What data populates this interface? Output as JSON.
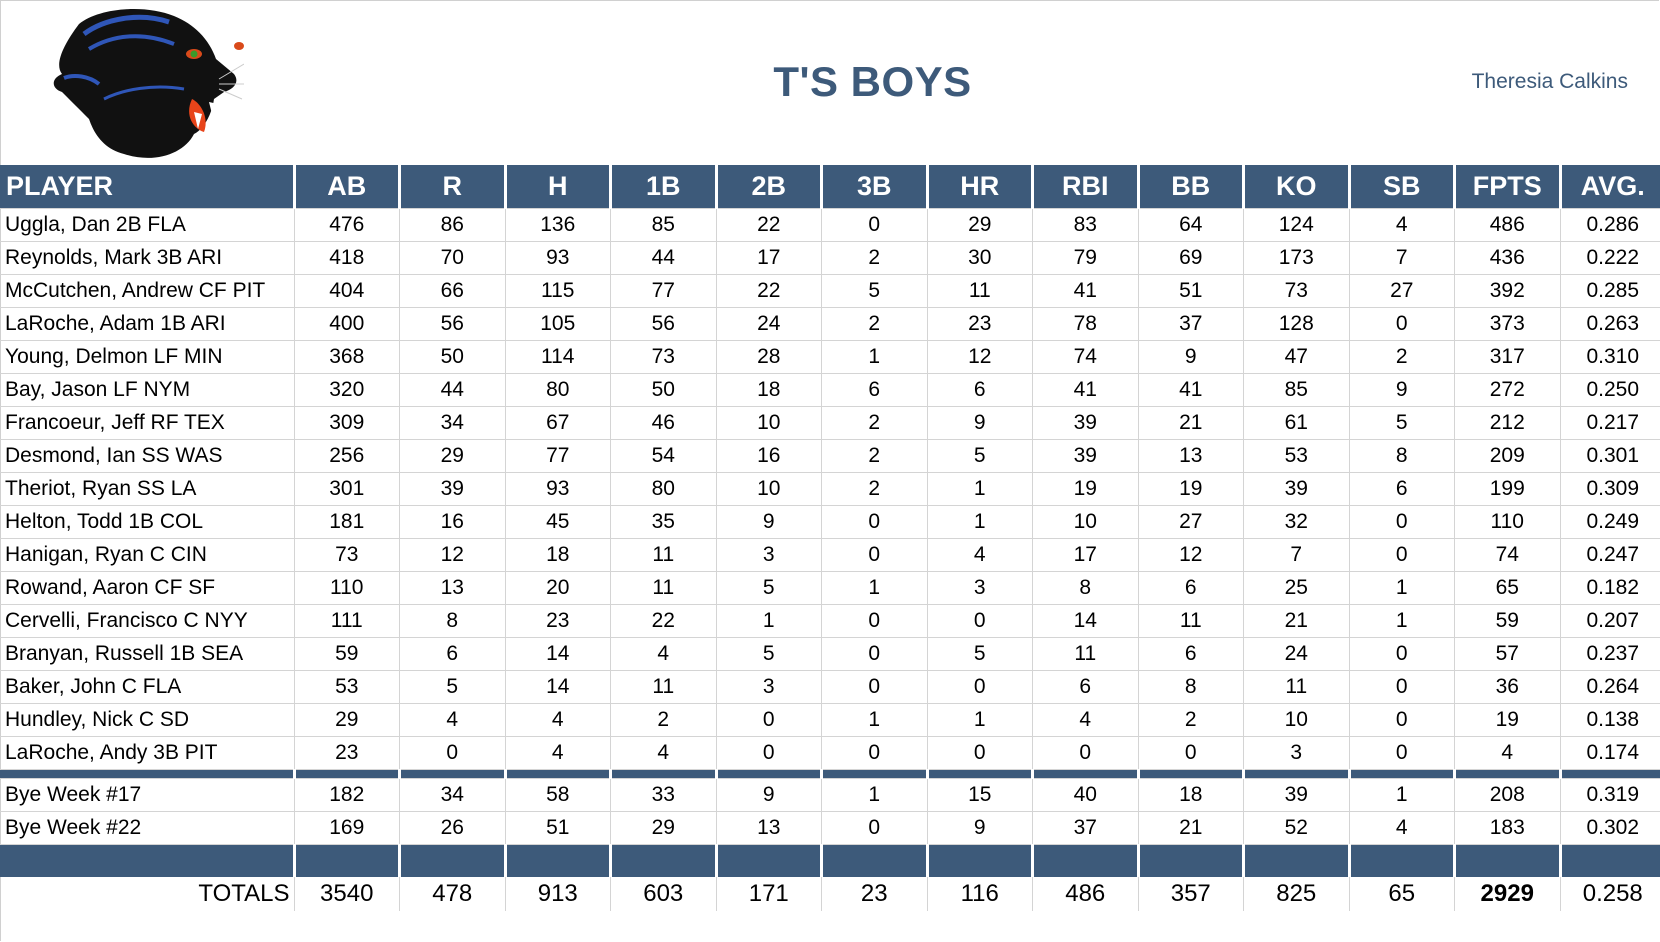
{
  "header": {
    "title": "T'S BOYS",
    "owner": "Theresia Calkins",
    "logo_icon": "panther-head-logo"
  },
  "colors": {
    "header_bg": "#3d5a7a",
    "title_text": "#3d5a7a",
    "header_text": "#ffffff",
    "grid": "#d4d4d4"
  },
  "table": {
    "columns": [
      "PLAYER",
      "AB",
      "R",
      "H",
      "1B",
      "2B",
      "3B",
      "HR",
      "RBI",
      "BB",
      "KO",
      "SB",
      "FPTS",
      "AVG."
    ],
    "rows": [
      [
        "Uggla, Dan 2B FLA",
        "476",
        "86",
        "136",
        "85",
        "22",
        "0",
        "29",
        "83",
        "64",
        "124",
        "4",
        "486",
        "0.286"
      ],
      [
        "Reynolds, Mark 3B ARI",
        "418",
        "70",
        "93",
        "44",
        "17",
        "2",
        "30",
        "79",
        "69",
        "173",
        "7",
        "436",
        "0.222"
      ],
      [
        "McCutchen, Andrew CF PIT",
        "404",
        "66",
        "115",
        "77",
        "22",
        "5",
        "11",
        "41",
        "51",
        "73",
        "27",
        "392",
        "0.285"
      ],
      [
        "LaRoche, Adam 1B ARI",
        "400",
        "56",
        "105",
        "56",
        "24",
        "2",
        "23",
        "78",
        "37",
        "128",
        "0",
        "373",
        "0.263"
      ],
      [
        "Young, Delmon LF MIN",
        "368",
        "50",
        "114",
        "73",
        "28",
        "1",
        "12",
        "74",
        "9",
        "47",
        "2",
        "317",
        "0.310"
      ],
      [
        "Bay, Jason LF NYM",
        "320",
        "44",
        "80",
        "50",
        "18",
        "6",
        "6",
        "41",
        "41",
        "85",
        "9",
        "272",
        "0.250"
      ],
      [
        "Francoeur, Jeff RF TEX",
        "309",
        "34",
        "67",
        "46",
        "10",
        "2",
        "9",
        "39",
        "21",
        "61",
        "5",
        "212",
        "0.217"
      ],
      [
        "Desmond, Ian SS WAS",
        "256",
        "29",
        "77",
        "54",
        "16",
        "2",
        "5",
        "39",
        "13",
        "53",
        "8",
        "209",
        "0.301"
      ],
      [
        "Theriot, Ryan SS LA",
        "301",
        "39",
        "93",
        "80",
        "10",
        "2",
        "1",
        "19",
        "19",
        "39",
        "6",
        "199",
        "0.309"
      ],
      [
        "Helton, Todd 1B COL",
        "181",
        "16",
        "45",
        "35",
        "9",
        "0",
        "1",
        "10",
        "27",
        "32",
        "0",
        "110",
        "0.249"
      ],
      [
        "Hanigan, Ryan C CIN",
        "73",
        "12",
        "18",
        "11",
        "3",
        "0",
        "4",
        "17",
        "12",
        "7",
        "0",
        "74",
        "0.247"
      ],
      [
        "Rowand, Aaron CF SF",
        "110",
        "13",
        "20",
        "11",
        "5",
        "1",
        "3",
        "8",
        "6",
        "25",
        "1",
        "65",
        "0.182"
      ],
      [
        "Cervelli, Francisco C NYY",
        "111",
        "8",
        "23",
        "22",
        "1",
        "0",
        "0",
        "14",
        "11",
        "21",
        "1",
        "59",
        "0.207"
      ],
      [
        "Branyan, Russell 1B SEA",
        "59",
        "6",
        "14",
        "4",
        "5",
        "0",
        "5",
        "11",
        "6",
        "24",
        "0",
        "57",
        "0.237"
      ],
      [
        "Baker, John C FLA",
        "53",
        "5",
        "14",
        "11",
        "3",
        "0",
        "0",
        "6",
        "8",
        "11",
        "0",
        "36",
        "0.264"
      ],
      [
        "Hundley, Nick C SD",
        "29",
        "4",
        "4",
        "2",
        "0",
        "1",
        "1",
        "4",
        "2",
        "10",
        "0",
        "19",
        "0.138"
      ],
      [
        "LaRoche, Andy 3B PIT",
        "23",
        "0",
        "4",
        "4",
        "0",
        "0",
        "0",
        "0",
        "0",
        "3",
        "0",
        "4",
        "0.174"
      ]
    ],
    "bye_rows": [
      [
        "Bye Week #17",
        "182",
        "34",
        "58",
        "33",
        "9",
        "1",
        "15",
        "40",
        "18",
        "39",
        "1",
        "208",
        "0.319"
      ],
      [
        "Bye Week #22",
        "169",
        "26",
        "51",
        "29",
        "13",
        "0",
        "9",
        "37",
        "21",
        "52",
        "4",
        "183",
        "0.302"
      ]
    ],
    "totals": [
      "TOTALS",
      "3540",
      "478",
      "913",
      "603",
      "171",
      "23",
      "116",
      "486",
      "357",
      "825",
      "65",
      "2929",
      "0.258"
    ]
  }
}
